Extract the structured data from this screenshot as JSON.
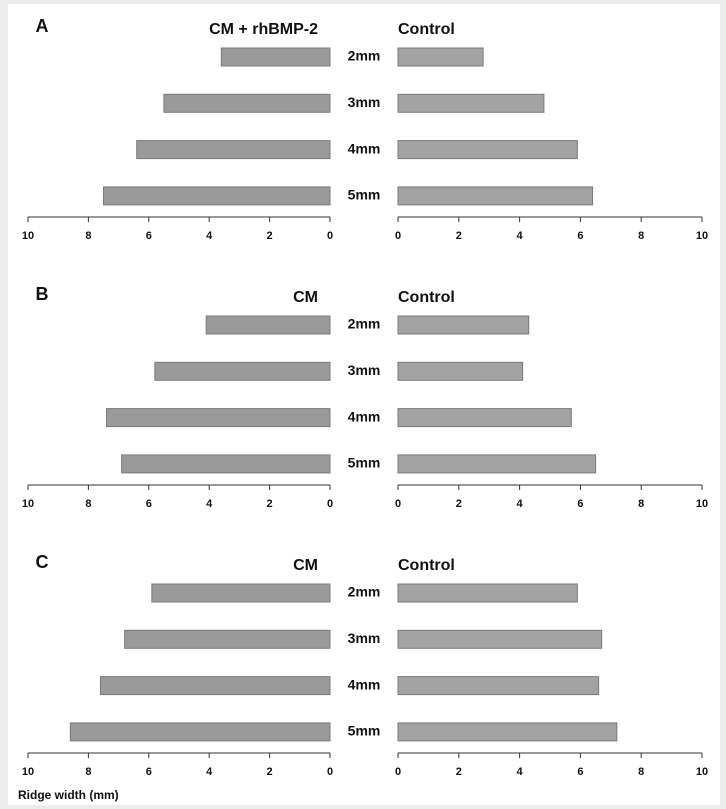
{
  "chart_data": [
    {
      "type": "butterfly-bar",
      "panel": "A",
      "categories": [
        "2mm",
        "3mm",
        "4mm",
        "5mm"
      ],
      "series": [
        {
          "name": "CM + rhBMP-2",
          "color": "#9a9a9a",
          "values": [
            3.6,
            5.5,
            6.4,
            7.5
          ],
          "xlim": [
            10,
            0
          ]
        },
        {
          "name": "Control",
          "color": "#a3a3a3",
          "values": [
            2.8,
            4.8,
            5.9,
            6.4
          ],
          "xlim": [
            0,
            10
          ]
        }
      ],
      "xticks": [
        0,
        2,
        4,
        6,
        8,
        10
      ]
    },
    {
      "type": "butterfly-bar",
      "panel": "B",
      "categories": [
        "2mm",
        "3mm",
        "4mm",
        "5mm"
      ],
      "series": [
        {
          "name": "CM",
          "color": "#9a9a9a",
          "values": [
            4.1,
            5.8,
            7.4,
            6.9
          ],
          "xlim": [
            10,
            0
          ]
        },
        {
          "name": "Control",
          "color": "#a3a3a3",
          "values": [
            4.3,
            4.1,
            5.7,
            6.5
          ],
          "xlim": [
            0,
            10
          ]
        }
      ],
      "xticks": [
        0,
        2,
        4,
        6,
        8,
        10
      ]
    },
    {
      "type": "butterfly-bar",
      "panel": "C",
      "categories": [
        "2mm",
        "3mm",
        "4mm",
        "5mm"
      ],
      "series": [
        {
          "name": "CM",
          "color": "#9a9a9a",
          "values": [
            5.9,
            6.8,
            7.6,
            8.6
          ],
          "xlim": [
            10,
            0
          ]
        },
        {
          "name": "Control",
          "color": "#a3a3a3",
          "values": [
            5.9,
            6.7,
            6.6,
            7.2
          ],
          "xlim": [
            0,
            10
          ]
        }
      ],
      "xticks": [
        0,
        2,
        4,
        6,
        8,
        10
      ],
      "xlabel": "Ridge width (mm)"
    }
  ]
}
